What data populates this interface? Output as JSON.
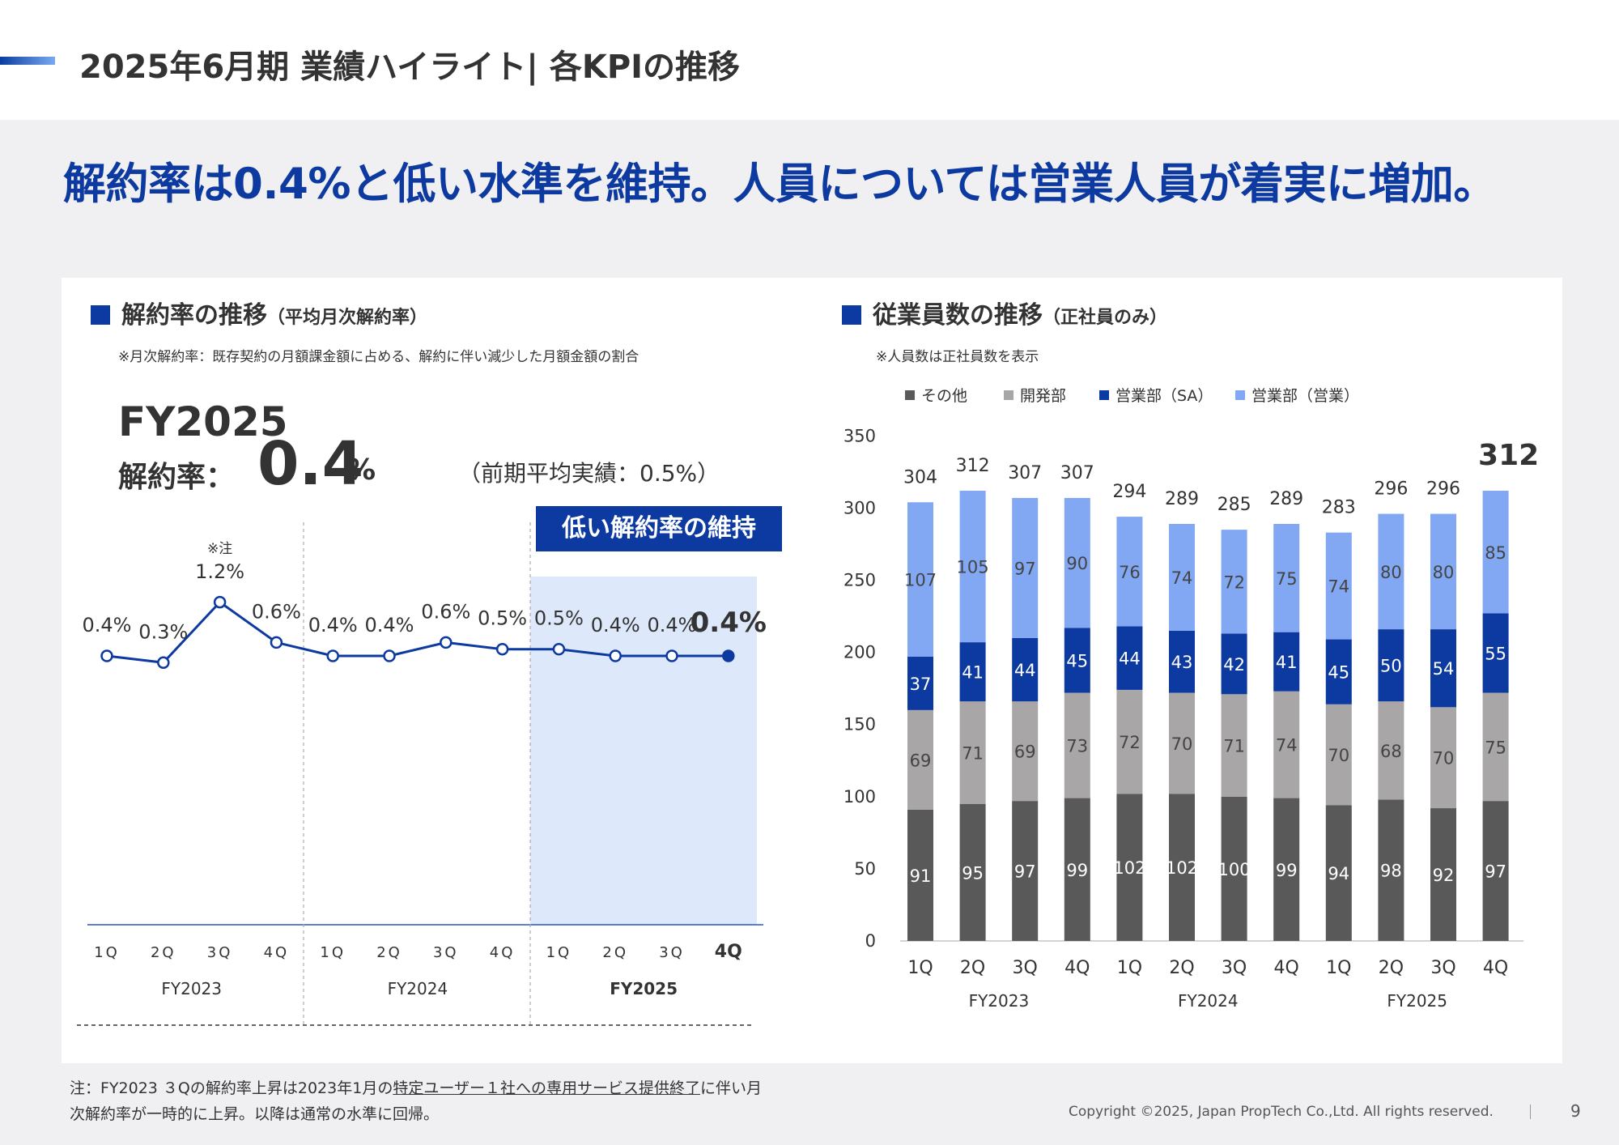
{
  "header": {
    "title": "2025年6月期 業績ハイライト| 各KPIの推移"
  },
  "headline": "解約率は0.4%と低い水準を維持。人員については営業人員が着実に増加。",
  "left": {
    "title": "解約率の推移",
    "subtitle": "（平均月次解約率）",
    "note": "※月次解約率：既存契約の月額課金額に占める、解約に伴い減少した月額金額の割合",
    "fy": "FY2025",
    "label": "解約率：",
    "value": "0.4",
    "unit": "%",
    "prev": "（前期平均実績：0.5%）",
    "badge": "低い解約率の維持"
  },
  "right": {
    "title": "従業員数の推移",
    "subtitle": "（正社員のみ）",
    "note": "※人員数は正社員数を表示"
  },
  "chart_data": [
    {
      "type": "line",
      "x": [
        "1Q",
        "2Q",
        "3Q",
        "4Q",
        "1Q",
        "2Q",
        "3Q",
        "4Q",
        "1Q",
        "2Q",
        "3Q",
        "4Q"
      ],
      "groups": [
        "FY2023",
        "FY2024",
        "FY2025"
      ],
      "values": [
        0.4,
        0.3,
        1.2,
        0.6,
        0.4,
        0.4,
        0.6,
        0.5,
        0.5,
        0.4,
        0.4,
        0.4
      ],
      "labels": [
        "0.4%",
        "0.3%",
        "1.2%",
        "0.6%",
        "0.4%",
        "0.4%",
        "0.6%",
        "0.5%",
        "0.5%",
        "0.4%",
        "0.4%",
        "0.4%"
      ],
      "annotation": "※注",
      "highlight_group": "FY2025"
    },
    {
      "type": "bar",
      "stacked": true,
      "categories": [
        "1Q",
        "2Q",
        "3Q",
        "4Q",
        "1Q",
        "2Q",
        "3Q",
        "4Q",
        "1Q",
        "2Q",
        "3Q",
        "4Q"
      ],
      "groups": [
        "FY2023",
        "FY2024",
        "FY2025"
      ],
      "ylim": [
        0,
        350
      ],
      "yticks": [
        0,
        50,
        100,
        150,
        200,
        250,
        300,
        350
      ],
      "series": [
        {
          "name": "その他",
          "color": "#595959",
          "values": [
            91,
            95,
            97,
            99,
            102,
            102,
            100,
            99,
            94,
            98,
            92,
            97
          ]
        },
        {
          "name": "開発部",
          "color": "#a8a6a6",
          "values": [
            69,
            71,
            69,
            73,
            72,
            70,
            71,
            74,
            70,
            68,
            70,
            75
          ]
        },
        {
          "name": "営業部（SA）",
          "color": "#0d3aa0",
          "values": [
            37,
            41,
            44,
            45,
            44,
            43,
            42,
            41,
            45,
            50,
            54,
            55
          ]
        },
        {
          "name": "営業部（営業）",
          "color": "#82a8f3",
          "values": [
            107,
            105,
            97,
            90,
            76,
            74,
            72,
            75,
            74,
            80,
            80,
            85
          ]
        }
      ],
      "totals": [
        304,
        312,
        307,
        307,
        294,
        289,
        285,
        289,
        283,
        296,
        296,
        312
      ]
    }
  ],
  "footer": {
    "note_a": "注：FY2023 ３Qの解約率上昇は2023年1月の",
    "note_b": "特定ユーザー１社への専用サービス提供終了",
    "note_c": "に伴い月次解約率が一時的に上昇。以降は通常の水準に回帰。",
    "copyright": "Copyright ©2025, Japan PropTech Co.,Ltd. All rights reserved.",
    "page": "9"
  }
}
